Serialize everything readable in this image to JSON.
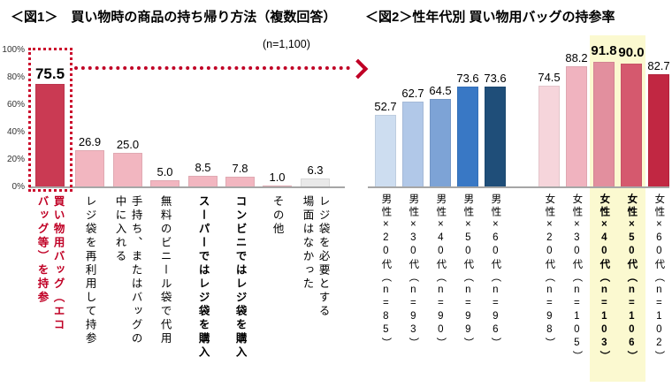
{
  "chart_data": [
    {
      "type": "bar",
      "title": "＜図1＞　買い物時の商品の持ち帰り方法（複数回答）",
      "subtitle": "(n=1,100)",
      "categories": [
        "買い物用バッグ（エコバッグ等）を持参",
        "レジ袋を再利用して持参",
        "手持ち、またはバッグの中に入れる",
        "無料のビニール袋で代用",
        "スーパーではレジ袋を購入",
        "コンビニではレジ袋を購入",
        "その他",
        "レジ袋を必要とする場面はなかった"
      ],
      "category_display": [
        "買い物用バッグ（エコ\nバッグ等）を持参",
        "レジ袋を再利用して持参",
        "手持ち、またはバッグの\n中に入れる",
        "無料のビニール袋で代用",
        "スーパーではレジ袋を購入",
        "コンビニではレジ袋を購入",
        "その他",
        "レジ袋を必要とする\n場面はなかった"
      ],
      "values": [
        75.5,
        26.9,
        25.0,
        5.0,
        8.5,
        7.8,
        1.0,
        6.3
      ],
      "ylim": [
        0,
        100
      ],
      "y_tick_labels": [
        "100%",
        "80%",
        "60%",
        "40%",
        "20%",
        "0%"
      ],
      "grid": false,
      "bar_colors": [
        "#ca3a53",
        "#f2b6c0",
        "#f2b6c0",
        "#f2b6c0",
        "#f2b6c0",
        "#f2b6c0",
        "#f2b6c0",
        "#e9e9e9"
      ],
      "highlight": {
        "category": "買い物用バッグ（エコバッグ等）を持参",
        "style": "red-dotted-outline-with-arrow-to-fig2",
        "color": "#c00025"
      }
    },
    {
      "type": "bar",
      "title": "＜図2＞性年代別 買い物用バッグの持参率",
      "categories": [
        "男性×20代（n=85）",
        "男性×30代（n=93）",
        "男性×40代（n=90）",
        "男性×50代（n=99）",
        "男性×60代（n=96）",
        "女性×20代（n=98）",
        "女性×30代（n=105）",
        "女性×40代（n=103）",
        "女性×50代（n=106）",
        "女性×60代（n=102）"
      ],
      "values": [
        52.7,
        62.7,
        64.5,
        73.6,
        73.6,
        74.5,
        88.2,
        91.8,
        90.0,
        82.7
      ],
      "ylim": [
        0,
        100
      ],
      "grid": false,
      "bar_colors": [
        "#cdddf0",
        "#b1c8e8",
        "#7da3d6",
        "#3978c5",
        "#1f4e79",
        "#f6d5db",
        "#f0b3bf",
        "#e28f9e",
        "#d5596e",
        "#c12742"
      ],
      "highlight": {
        "categories": [
          "女性×40代（n=103）",
          "女性×50代（n=106）"
        ],
        "style": "yellow-background",
        "color": "#fbf9d0"
      }
    }
  ]
}
